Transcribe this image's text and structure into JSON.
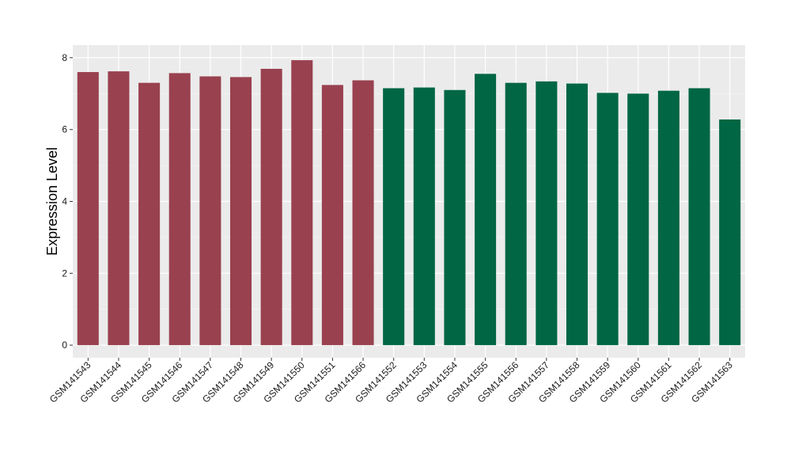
{
  "chart_data": {
    "type": "bar",
    "title": "",
    "xlabel": "",
    "ylabel": "Expression Level",
    "ylim": [
      -0.35,
      8.35
    ],
    "yticks": [
      0,
      2,
      4,
      6,
      8
    ],
    "grid": true,
    "legend": "none",
    "panel_color": "#ebebeb",
    "categories": [
      "GSM141543",
      "GSM141544",
      "GSM141545",
      "GSM141546",
      "GSM141547",
      "GSM141548",
      "GSM141549",
      "GSM141550",
      "GSM141551",
      "GSM141566",
      "GSM141552",
      "GSM141553",
      "GSM141554",
      "GSM141555",
      "GSM141556",
      "GSM141557",
      "GSM141558",
      "GSM141559",
      "GSM141560",
      "GSM141561",
      "GSM141562",
      "GSM141563"
    ],
    "values": [
      7.6,
      7.62,
      7.3,
      7.57,
      7.48,
      7.46,
      7.69,
      7.93,
      7.24,
      7.37,
      7.15,
      7.17,
      7.1,
      7.55,
      7.3,
      7.34,
      7.28,
      7.02,
      7.0,
      7.08,
      7.15,
      6.28
    ],
    "colors": [
      "#99414f",
      "#99414f",
      "#99414f",
      "#99414f",
      "#99414f",
      "#99414f",
      "#99414f",
      "#99414f",
      "#99414f",
      "#99414f",
      "#006644",
      "#006644",
      "#006644",
      "#006644",
      "#006644",
      "#006644",
      "#006644",
      "#006644",
      "#006644",
      "#006644",
      "#006644",
      "#006644"
    ]
  }
}
